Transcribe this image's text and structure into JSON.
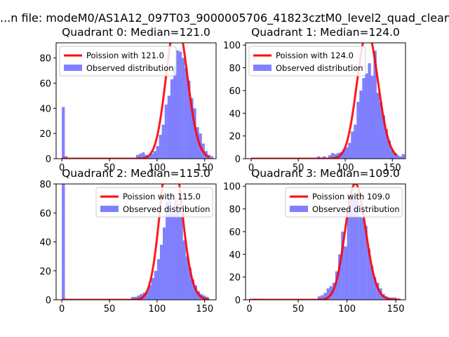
{
  "suptitle": "...n file: modeM0/AS1A12_097T03_9000005706_41823cztM0_level2_quad_clean...",
  "chart_data": [
    {
      "type": "bar",
      "title": "Quadrant 0: Median=121.0",
      "xlim": [
        -6,
        162
      ],
      "ylim": [
        0,
        92
      ],
      "xticks": [
        0,
        50,
        100,
        150
      ],
      "yticks": [
        0,
        20,
        40,
        60,
        80
      ],
      "legend_position": "top-left",
      "legend": [
        {
          "label": "Poission with 121.0",
          "kind": "line",
          "color": "#ff0000"
        },
        {
          "label": "Observed distribution",
          "kind": "patch",
          "color": "#8080ff"
        }
      ],
      "poisson_mean": 121.0,
      "poisson_scale": 3040,
      "hist": {
        "bin_width": 3.1,
        "bins": [
          [
            0,
            41
          ],
          [
            3,
            2
          ],
          [
            78,
            3
          ],
          [
            81,
            4
          ],
          [
            84,
            5
          ],
          [
            87,
            3
          ],
          [
            90,
            2
          ],
          [
            93,
            4
          ],
          [
            96,
            6
          ],
          [
            99,
            10
          ],
          [
            102,
            19
          ],
          [
            105,
            27
          ],
          [
            108,
            43
          ],
          [
            111,
            50
          ],
          [
            114,
            63
          ],
          [
            117,
            73
          ],
          [
            120,
            86
          ],
          [
            123,
            85
          ],
          [
            126,
            80
          ],
          [
            129,
            72
          ],
          [
            132,
            62
          ],
          [
            135,
            48
          ],
          [
            138,
            40
          ],
          [
            141,
            25
          ],
          [
            144,
            20
          ],
          [
            147,
            12
          ],
          [
            150,
            6
          ],
          [
            153,
            3
          ],
          [
            156,
            2
          ]
        ]
      }
    },
    {
      "type": "bar",
      "title": "Quadrant 1: Median=124.0",
      "xlim": [
        -6,
        164
      ],
      "ylim": [
        0,
        102
      ],
      "xticks": [
        0,
        50,
        100,
        150
      ],
      "yticks": [
        0,
        20,
        40,
        60,
        80,
        100
      ],
      "legend_position": "top-left",
      "legend": [
        {
          "label": "Poission with 124.0",
          "kind": "line",
          "color": "#ff0000"
        },
        {
          "label": "Observed distribution",
          "kind": "patch",
          "color": "#8080ff"
        }
      ],
      "poisson_mean": 124.0,
      "poisson_scale": 3120,
      "hist": {
        "bin_width": 3.3,
        "bins": [
          [
            70,
            2
          ],
          [
            73,
            1
          ],
          [
            76,
            2
          ],
          [
            82,
            3
          ],
          [
            85,
            5
          ],
          [
            88,
            4
          ],
          [
            91,
            5
          ],
          [
            94,
            6
          ],
          [
            97,
            8
          ],
          [
            100,
            10
          ],
          [
            103,
            14
          ],
          [
            106,
            24
          ],
          [
            109,
            30
          ],
          [
            112,
            50
          ],
          [
            115,
            60
          ],
          [
            118,
            71
          ],
          [
            121,
            75
          ],
          [
            124,
            84
          ],
          [
            127,
            73
          ],
          [
            130,
            95
          ],
          [
            133,
            58
          ],
          [
            136,
            50
          ],
          [
            139,
            38
          ],
          [
            142,
            26
          ],
          [
            145,
            16
          ],
          [
            148,
            8
          ],
          [
            151,
            5
          ],
          [
            154,
            3
          ],
          [
            157,
            2
          ],
          [
            160,
            4
          ]
        ]
      }
    },
    {
      "type": "bar",
      "title": "Quadrant 2: Median=115.0",
      "xlim": [
        -6,
        162
      ],
      "ylim": [
        0,
        80
      ],
      "xticks": [
        0,
        50,
        100,
        150
      ],
      "yticks": [
        0,
        20,
        40,
        60,
        80
      ],
      "legend_position": "top-right",
      "legend": [
        {
          "label": "Poission with 115.0",
          "kind": "line",
          "color": "#ff0000"
        },
        {
          "label": "Observed distribution",
          "kind": "patch",
          "color": "#8080ff"
        }
      ],
      "poisson_mean": 115.0,
      "poisson_scale": 3000,
      "hist": {
        "bin_width": 3.2,
        "bins": [
          [
            0,
            80
          ],
          [
            73,
            2
          ],
          [
            76,
            2
          ],
          [
            79,
            3
          ],
          [
            82,
            4
          ],
          [
            85,
            5
          ],
          [
            88,
            6
          ],
          [
            91,
            10
          ],
          [
            94,
            15
          ],
          [
            97,
            20
          ],
          [
            100,
            28
          ],
          [
            103,
            38
          ],
          [
            106,
            50
          ],
          [
            109,
            68
          ],
          [
            112,
            74
          ],
          [
            115,
            60
          ],
          [
            118,
            70
          ],
          [
            121,
            66
          ],
          [
            124,
            57
          ],
          [
            127,
            41
          ],
          [
            130,
            30
          ],
          [
            133,
            22
          ],
          [
            136,
            14
          ],
          [
            139,
            10
          ],
          [
            142,
            6
          ],
          [
            145,
            4
          ],
          [
            148,
            3
          ],
          [
            151,
            2
          ]
        ]
      }
    },
    {
      "type": "bar",
      "title": "Quadrant 3: Median=109.0",
      "xlim": [
        -4,
        160
      ],
      "ylim": [
        0,
        102
      ],
      "xticks": [
        0,
        50,
        100,
        150
      ],
      "yticks": [
        0,
        20,
        40,
        60,
        80,
        100
      ],
      "legend_position": "top-right",
      "legend": [
        {
          "label": "Poission with 109.0",
          "kind": "line",
          "color": "#ff0000"
        },
        {
          "label": "Observed distribution",
          "kind": "patch",
          "color": "#8080ff"
        }
      ],
      "poisson_mean": 109.0,
      "poisson_scale": 2680,
      "hist": {
        "bin_width": 3.0,
        "bins": [
          [
            5,
            1
          ],
          [
            70,
            3
          ],
          [
            73,
            4
          ],
          [
            76,
            6
          ],
          [
            79,
            10
          ],
          [
            82,
            12
          ],
          [
            85,
            15
          ],
          [
            88,
            25
          ],
          [
            91,
            40
          ],
          [
            94,
            60
          ],
          [
            97,
            47
          ],
          [
            100,
            78
          ],
          [
            103,
            95
          ],
          [
            106,
            90
          ],
          [
            109,
            92
          ],
          [
            112,
            73
          ],
          [
            115,
            72
          ],
          [
            118,
            65
          ],
          [
            121,
            45
          ],
          [
            124,
            30
          ],
          [
            127,
            20
          ],
          [
            130,
            15
          ],
          [
            133,
            10
          ],
          [
            136,
            5
          ],
          [
            139,
            3
          ],
          [
            142,
            2
          ],
          [
            145,
            2
          ],
          [
            148,
            2
          ],
          [
            151,
            1
          ]
        ]
      }
    }
  ]
}
